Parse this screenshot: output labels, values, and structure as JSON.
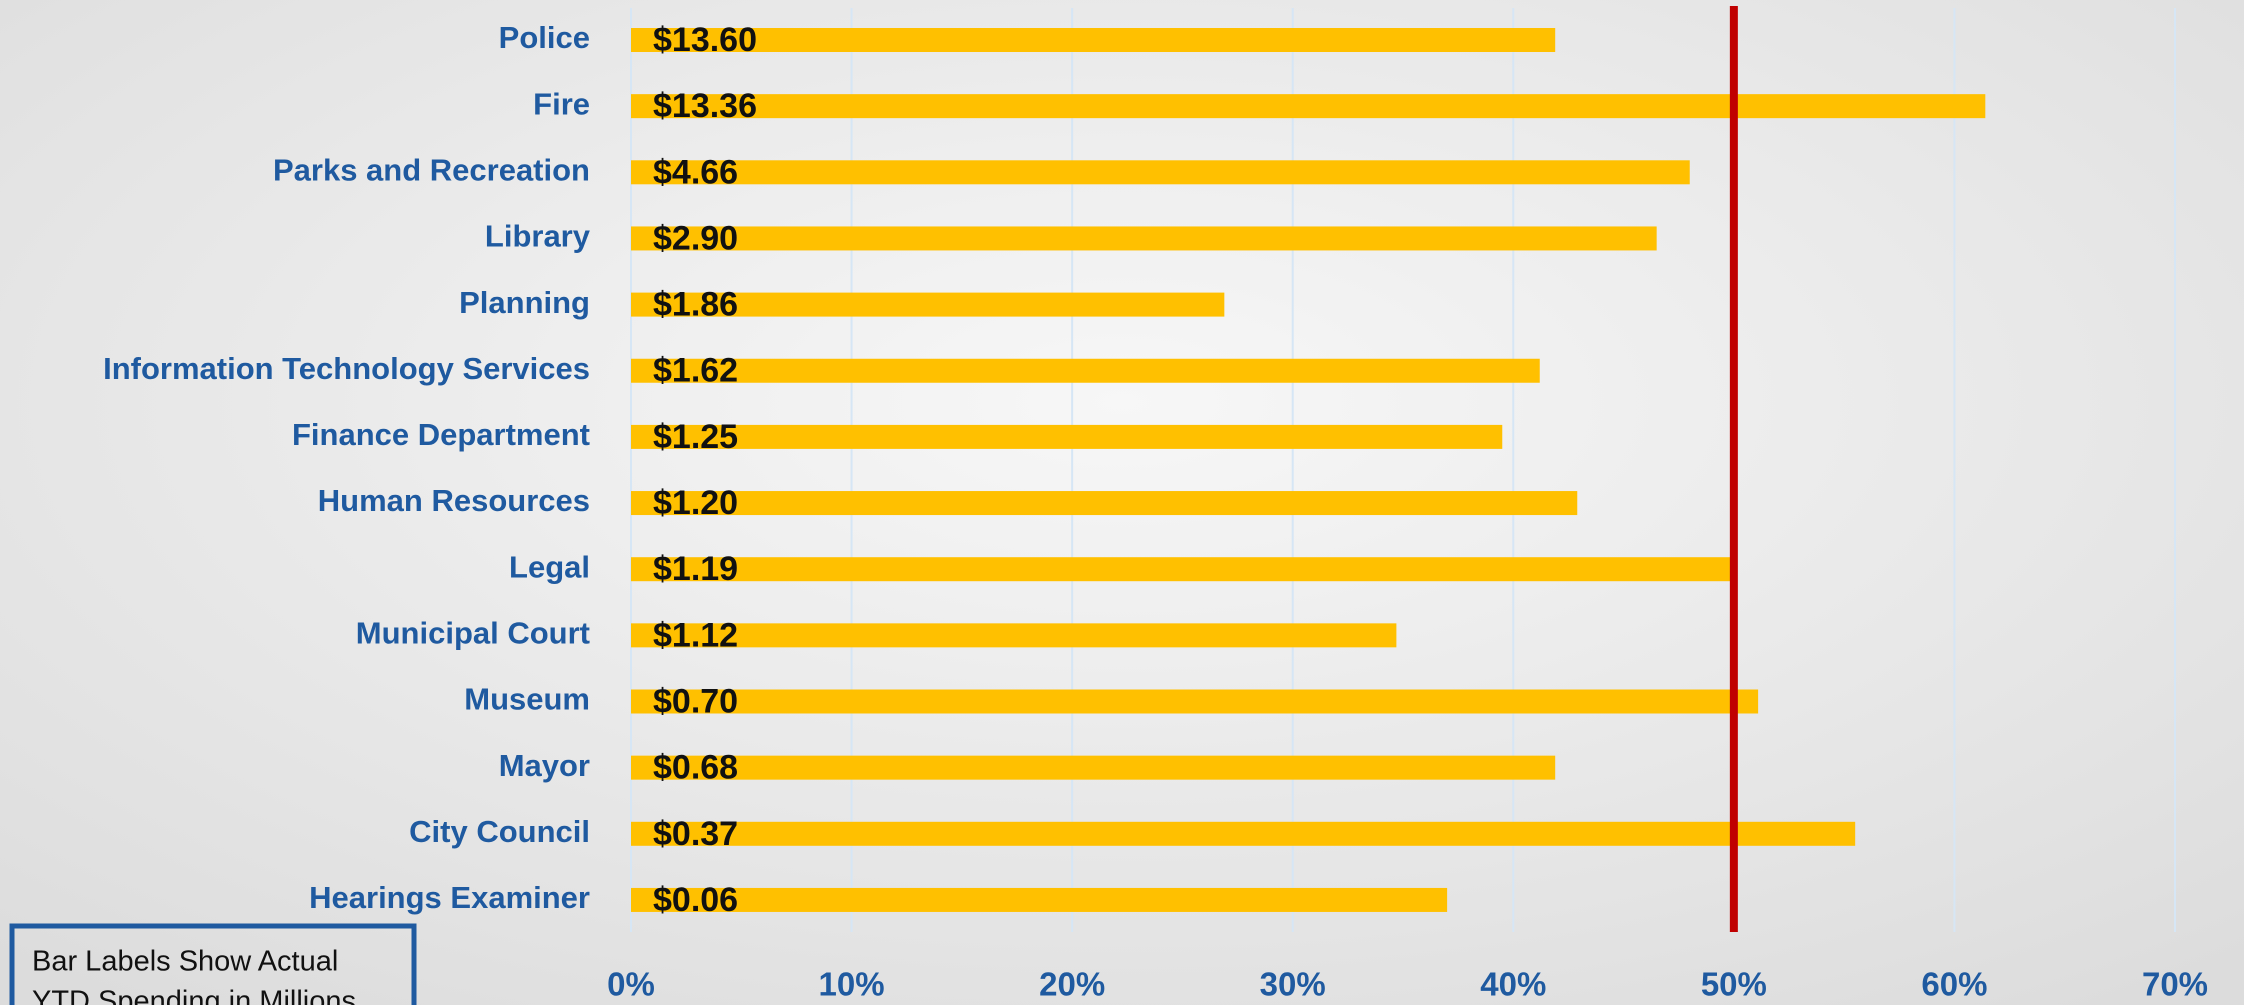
{
  "chart_data": {
    "type": "hbar",
    "categories": [
      "Police",
      "Fire",
      "Parks and Recreation",
      "Library",
      "Planning",
      "Information Technology Services",
      "Finance Department",
      "Human Resources",
      "Legal",
      "Municipal Court",
      "Museum",
      "Mayor",
      "City Council",
      "Hearings Examiner"
    ],
    "values": [
      41.9,
      61.4,
      48.0,
      46.5,
      26.9,
      41.2,
      39.5,
      42.9,
      49.9,
      34.7,
      51.1,
      41.9,
      55.5,
      37.0
    ],
    "bar_labels": [
      "$13.60",
      "$13.36",
      "$4.66",
      "$2.90",
      "$1.86",
      "$1.62",
      "$1.25",
      "$1.20",
      "$1.19",
      "$1.12",
      "$0.70",
      "$0.68",
      "$0.37",
      "$0.06"
    ],
    "color": "#ffc000",
    "xlim": [
      0,
      70
    ],
    "xticks": [
      {
        "value": 0,
        "label": "0%"
      },
      {
        "value": 10,
        "label": "10%"
      },
      {
        "value": 20,
        "label": "20%"
      },
      {
        "value": 30,
        "label": "30%"
      },
      {
        "value": 40,
        "label": "40%"
      },
      {
        "value": 50,
        "label": "50%"
      },
      {
        "value": 60,
        "label": "60%"
      },
      {
        "value": 70,
        "label": "70%"
      }
    ],
    "grid": true,
    "reference_line": 50,
    "reference_color": "#c00000",
    "annotation": [
      "Bar Labels Show Actual",
      "YTD Spending in Millions"
    ]
  }
}
